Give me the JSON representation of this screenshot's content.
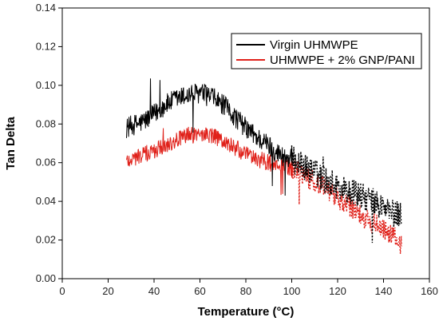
{
  "chart_data": {
    "type": "line",
    "title": "",
    "xlabel": "Temperature (°C)",
    "ylabel": "Tan Delta",
    "xlim": [
      0,
      160
    ],
    "ylim": [
      0.0,
      0.14
    ],
    "xticks": [
      "0",
      "20",
      "40",
      "60",
      "80",
      "100",
      "120",
      "140",
      "160"
    ],
    "yticks": [
      "0.00",
      "0.02",
      "0.04",
      "0.06",
      "0.08",
      "0.10",
      "0.12",
      "0.14"
    ],
    "grid": false,
    "legend_position": "top-right",
    "series": [
      {
        "name": "Virgin UHMWPE",
        "color": "#000000",
        "x": [
          28,
          30,
          35,
          40,
          45,
          50,
          55,
          60,
          65,
          70,
          75,
          80,
          85,
          90,
          95,
          100,
          105,
          110,
          115,
          120,
          125,
          130,
          135,
          140,
          145,
          148
        ],
        "y": [
          0.078,
          0.079,
          0.081,
          0.085,
          0.09,
          0.093,
          0.095,
          0.096,
          0.094,
          0.09,
          0.084,
          0.078,
          0.073,
          0.069,
          0.064,
          0.062,
          0.058,
          0.055,
          0.051,
          0.048,
          0.045,
          0.043,
          0.04,
          0.037,
          0.033,
          0.034
        ]
      },
      {
        "name": "UHMWPE + 2% GNP/PANI",
        "color": "#e0211a",
        "x": [
          28,
          30,
          35,
          40,
          45,
          50,
          55,
          60,
          65,
          70,
          75,
          80,
          85,
          90,
          95,
          100,
          105,
          110,
          115,
          120,
          125,
          130,
          135,
          140,
          145,
          148
        ],
        "y": [
          0.061,
          0.062,
          0.064,
          0.066,
          0.069,
          0.072,
          0.074,
          0.075,
          0.074,
          0.071,
          0.068,
          0.064,
          0.062,
          0.06,
          0.058,
          0.057,
          0.054,
          0.05,
          0.046,
          0.041,
          0.038,
          0.033,
          0.029,
          0.025,
          0.021,
          0.017
        ]
      }
    ]
  }
}
